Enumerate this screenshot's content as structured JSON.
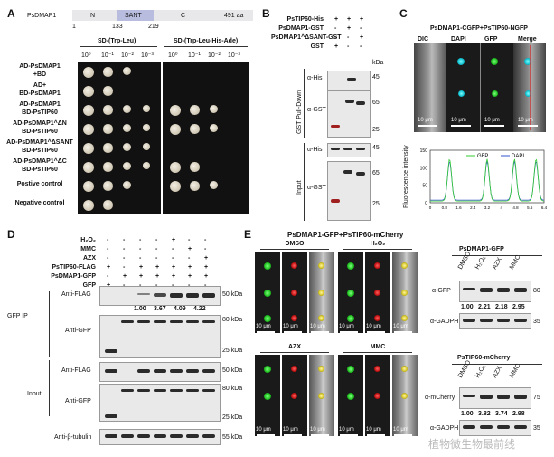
{
  "panel_a": {
    "letter": "A",
    "gene": "PsDMAP1",
    "domain_n": "N",
    "domain_sant": "SANT",
    "domain_c": "C",
    "length": "491 aa",
    "pos1": "1",
    "pos2": "133",
    "pos3": "219",
    "media1": "SD-(Trp-Leu)",
    "media2": "SD-(Trp-Leu-His-Ade)",
    "dilutions": [
      "10⁰",
      "10⁻¹",
      "10⁻²",
      "10⁻³"
    ],
    "rows": [
      {
        "line1": "AD-PsDMAP1",
        "line2": "+BD"
      },
      {
        "line1": "AD+",
        "line2": "BD-PsDMAP1"
      },
      {
        "line1": "AD-PsDMAP1",
        "line2": "BD-PsTIP60"
      },
      {
        "line1": "AD-PsDMAP1^ΔN",
        "line2": "BD-PsTIP60"
      },
      {
        "line1": "AD-PsDMAP1^ΔSANT",
        "line2": "BD-PsTIP60"
      },
      {
        "line1": "AD-PsDMAP1^ΔC",
        "line2": "BD-PsTIP60"
      },
      {
        "line1": "Postive control",
        "line2": ""
      },
      {
        "line1": "Negative control",
        "line2": ""
      }
    ]
  },
  "panel_b": {
    "letter": "B",
    "conditions": [
      "PsTIP60-His",
      "PsDMAP1-GST",
      "PsDMAP1^ΔSANT-GST",
      "GST"
    ],
    "signs": [
      [
        "+",
        "+",
        "+"
      ],
      [
        "-",
        "+",
        "-"
      ],
      [
        "-",
        "-",
        "+"
      ],
      [
        "+",
        "-",
        "-"
      ]
    ],
    "kda": "kDa",
    "pulldown_label": "GST Pull-Down",
    "input_label": "Input",
    "ab_his": "α-His",
    "ab_gst": "α-GST",
    "mw_45a": "45",
    "mw_65a": "65",
    "mw_25a": "25",
    "mw_45b": "45",
    "mw_65b": "65",
    "mw_25b": "25"
  },
  "panel_c": {
    "letter": "C",
    "title": "PsDMAP1-CGFP+PsTIP60-NGFP",
    "channels": [
      "DIC",
      "DAPI",
      "GFP",
      "Merge"
    ],
    "scale": "10 μm",
    "legend_gfp": "GFP",
    "legend_dapi": "DAPI",
    "ylabel": "Fluorescence intensity",
    "yticks": [
      "0",
      "50",
      "100",
      "150"
    ],
    "xticks": [
      "0",
      "0.8",
      "1.6",
      "2.4",
      "3.2",
      "4",
      "4.8",
      "5.6",
      "6.4"
    ],
    "colors": {
      "gfp": "#33cc33",
      "dapi": "#3355cc"
    }
  },
  "panel_d": {
    "letter": "D",
    "treat_labels": [
      "H₂O₂",
      "MMC",
      "AZX",
      "PsTIP60-FLAG",
      "PsDMAP1-GFP",
      "GFP"
    ],
    "treat_signs": [
      [
        "-",
        "-",
        "-",
        "-",
        "+",
        "-",
        "-"
      ],
      [
        "-",
        "-",
        "-",
        "-",
        "-",
        "+",
        "-"
      ],
      [
        "-",
        "-",
        "-",
        "-",
        "-",
        "-",
        "+"
      ],
      [
        "+",
        "-",
        "+",
        "+",
        "+",
        "+",
        "+"
      ],
      [
        "-",
        "+",
        "+",
        "+",
        "+",
        "+",
        "+"
      ],
      [
        "+",
        "-",
        "-",
        "-",
        "-",
        "-",
        "-"
      ]
    ],
    "gfp_ip": "GFP IP",
    "input": "Input",
    "ab_flag": "Anti-FLAG",
    "ab_gfp": "Anti-GFP",
    "ab_flag2": "Anti-FLAG",
    "ab_gfp2": "Anti-GFP",
    "ab_tub": "Anti-β-tubulin",
    "mw_50a": "50 kDa",
    "mw_80a": "80 kDa",
    "mw_25a": "25 kDa",
    "mw_50b": "50 kDa",
    "mw_80b": "80 kDa",
    "mw_25b": "25 kDa",
    "mw_55": "55 kDa",
    "quant": [
      "1.00",
      "3.67",
      "4.09",
      "4.22"
    ]
  },
  "panel_e": {
    "letter": "E",
    "title": "PsDMAP1-GFP+PsTIP60-mCherry",
    "conds": [
      "DMSO",
      "H₂O₂",
      "AZX",
      "MMC"
    ],
    "scale": "10 μm",
    "gfp_blot_title": "PsDMAP1-GFP",
    "mch_blot_title": "PsTIP60-mCherry",
    "blot_lanes": [
      "DMSO",
      "H₂O₂",
      "AZX",
      "MMC"
    ],
    "ab_gfp": "α-GFP",
    "ab_gadph1": "α-GADPH",
    "ab_mch": "α-mCherry",
    "ab_gadph2": "α-GADPH",
    "mw_80": "80",
    "mw_35a": "35",
    "mw_75": "75",
    "mw_35b": "35",
    "quant_gfp": [
      "1.00",
      "2.21",
      "2.18",
      "2.95"
    ],
    "quant_mch": [
      "1.00",
      "3.82",
      "3.74",
      "2.98"
    ]
  },
  "watermark": "植物微生物最前线"
}
